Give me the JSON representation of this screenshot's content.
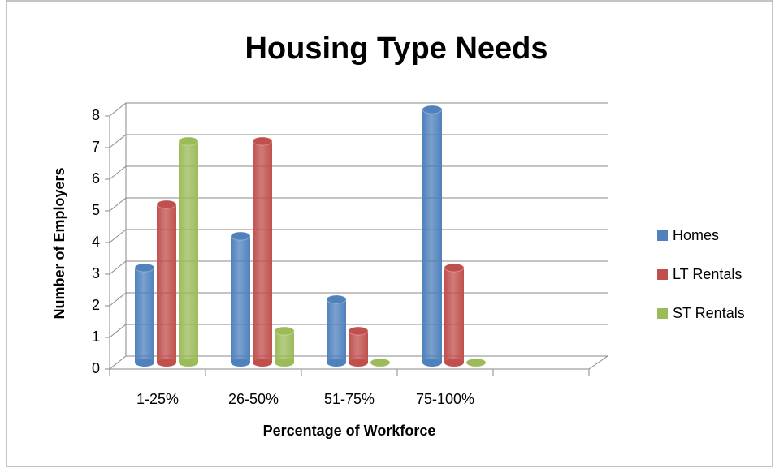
{
  "chart_data": {
    "type": "bar3d",
    "title": "Housing Type Needs",
    "x_label": "Percentage of Workforce",
    "y_label": "Number of Employers",
    "categories": [
      "1-25%",
      "26-50%",
      "51-75%",
      "75-100%",
      null
    ],
    "series": [
      {
        "name": "Homes",
        "color": "#4f81bd",
        "values": [
          3,
          4,
          2,
          8,
          null
        ]
      },
      {
        "name": "LT Rentals",
        "color": "#c0504d",
        "values": [
          5,
          7,
          1,
          3,
          null
        ]
      },
      {
        "name": "ST Rentals",
        "color": "#9bbb59",
        "values": [
          7,
          1,
          0,
          0,
          null
        ]
      }
    ],
    "ylim": [
      0,
      8
    ],
    "yticks": [
      0,
      1,
      2,
      3,
      4,
      5,
      6,
      7,
      8
    ],
    "grid": true,
    "legend": "right"
  }
}
